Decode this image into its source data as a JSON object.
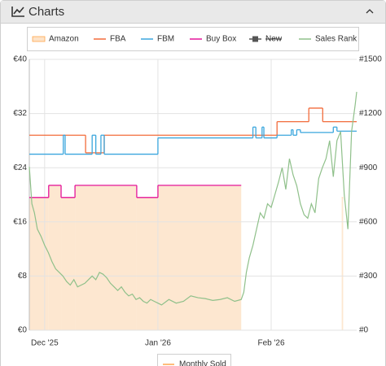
{
  "header": {
    "title": "Charts"
  },
  "chart_data": {
    "type": "line",
    "xlim": [
      -4.2,
      85.4
    ],
    "xticks": [
      {
        "value": 0,
        "label": "Dec '25"
      },
      {
        "value": 31,
        "label": "Jan '26"
      },
      {
        "value": 62,
        "label": "Feb '26"
      }
    ],
    "ylim": [
      0,
      40
    ],
    "yticks": [
      {
        "value": 0,
        "label": "€0"
      },
      {
        "value": 8,
        "label": "€8"
      },
      {
        "value": 16,
        "label": "€16"
      },
      {
        "value": 24,
        "label": "€24"
      },
      {
        "value": 32,
        "label": "€32"
      },
      {
        "value": 40,
        "label": "€40"
      }
    ],
    "y2lim": [
      0,
      1500
    ],
    "y2ticks": [
      {
        "value": 0,
        "label": "#0"
      },
      {
        "value": 300,
        "label": "#300"
      },
      {
        "value": 600,
        "label": "#600"
      },
      {
        "value": 900,
        "label": "#900"
      },
      {
        "value": 1200,
        "label": "#1200"
      },
      {
        "value": 1500,
        "label": "#1500"
      }
    ],
    "grid": true,
    "series": [
      {
        "name": "Amazon",
        "color": "#ffa64d",
        "fill": "#fde3c8",
        "style": "area",
        "x": [
          -4.2,
          1.1,
          4.5,
          8.3,
          25.2,
          31,
          53.8,
          54,
          81.3,
          81.7
        ],
        "values": [
          19.6,
          21.4,
          19.6,
          21.4,
          19.6,
          21.4,
          21.4,
          null,
          19.6,
          19.6
        ]
      },
      {
        "name": "FBA",
        "color": "#f26b3a",
        "style": "step",
        "x": [
          -4.2,
          11.2,
          16.3,
          63.6,
          72.3,
          76.1,
          85.4
        ],
        "values": [
          28.8,
          26.2,
          28.8,
          30.8,
          32.8,
          30.8,
          30.8
        ]
      },
      {
        "name": "FBM",
        "color": "#3aa6dd",
        "style": "step",
        "x": [
          -4.2,
          5.1,
          5.6,
          13,
          14,
          15.4,
          16.3,
          31,
          57,
          57.8,
          59.5,
          60,
          63.6,
          67.5,
          68,
          69,
          70,
          79,
          80,
          85.4
        ],
        "values": [
          26,
          28.8,
          26,
          28.8,
          26,
          28.8,
          26,
          28.4,
          30,
          28.4,
          30,
          28.4,
          28.8,
          29.6,
          28.8,
          29.6,
          29.2,
          30,
          29.4,
          29.4
        ]
      },
      {
        "name": "Buy Box",
        "color": "#e4159a",
        "style": "step",
        "x": [
          -4.2,
          1.1,
          4.5,
          8.3,
          25.2,
          31,
          53.8
        ],
        "values": [
          19.6,
          21.4,
          19.6,
          21.4,
          19.6,
          21.4,
          21.4
        ]
      },
      {
        "name": "New",
        "color": "#555555",
        "style": "step",
        "hidden": true,
        "x": [],
        "values": []
      },
      {
        "name": "Sales Rank",
        "color": "#8fc08a",
        "style": "line",
        "axis": "y2",
        "x": [
          -4.2,
          -3.5,
          -2.8,
          -2,
          -1,
          0,
          1,
          2,
          3,
          4,
          5,
          6,
          7,
          8,
          9,
          10,
          11,
          12,
          13,
          14,
          15,
          16,
          17,
          18,
          19,
          20,
          21,
          22,
          23,
          24,
          25,
          26,
          27,
          28,
          29,
          30,
          31,
          32,
          34,
          36,
          38,
          40,
          42,
          44,
          46,
          48,
          50,
          52,
          53.8,
          54.5,
          55.2,
          56,
          57,
          58,
          59,
          60,
          61,
          62,
          63,
          64,
          65,
          66,
          67,
          68,
          69,
          70,
          71,
          72,
          73,
          74,
          75,
          76,
          77,
          78,
          79,
          80,
          81,
          82,
          83,
          84,
          85,
          85.4
        ],
        "values": [
          905,
          700,
          650,
          560,
          520,
          470,
          430,
          380,
          340,
          320,
          300,
          270,
          250,
          280,
          240,
          250,
          260,
          280,
          300,
          280,
          320,
          310,
          290,
          260,
          240,
          220,
          240,
          210,
          190,
          200,
          170,
          180,
          160,
          150,
          170,
          160,
          150,
          140,
          170,
          150,
          160,
          190,
          180,
          175,
          165,
          170,
          180,
          160,
          170,
          210,
          320,
          400,
          470,
          560,
          650,
          620,
          700,
          680,
          750,
          820,
          900,
          780,
          950,
          860,
          800,
          700,
          640,
          620,
          700,
          650,
          840,
          900,
          950,
          1050,
          850,
          1050,
          1100,
          750,
          560,
          1100,
          1250,
          1320
        ]
      }
    ],
    "bottom_legend": {
      "name": "Monthly Sold",
      "color": "#ffa64d"
    }
  }
}
